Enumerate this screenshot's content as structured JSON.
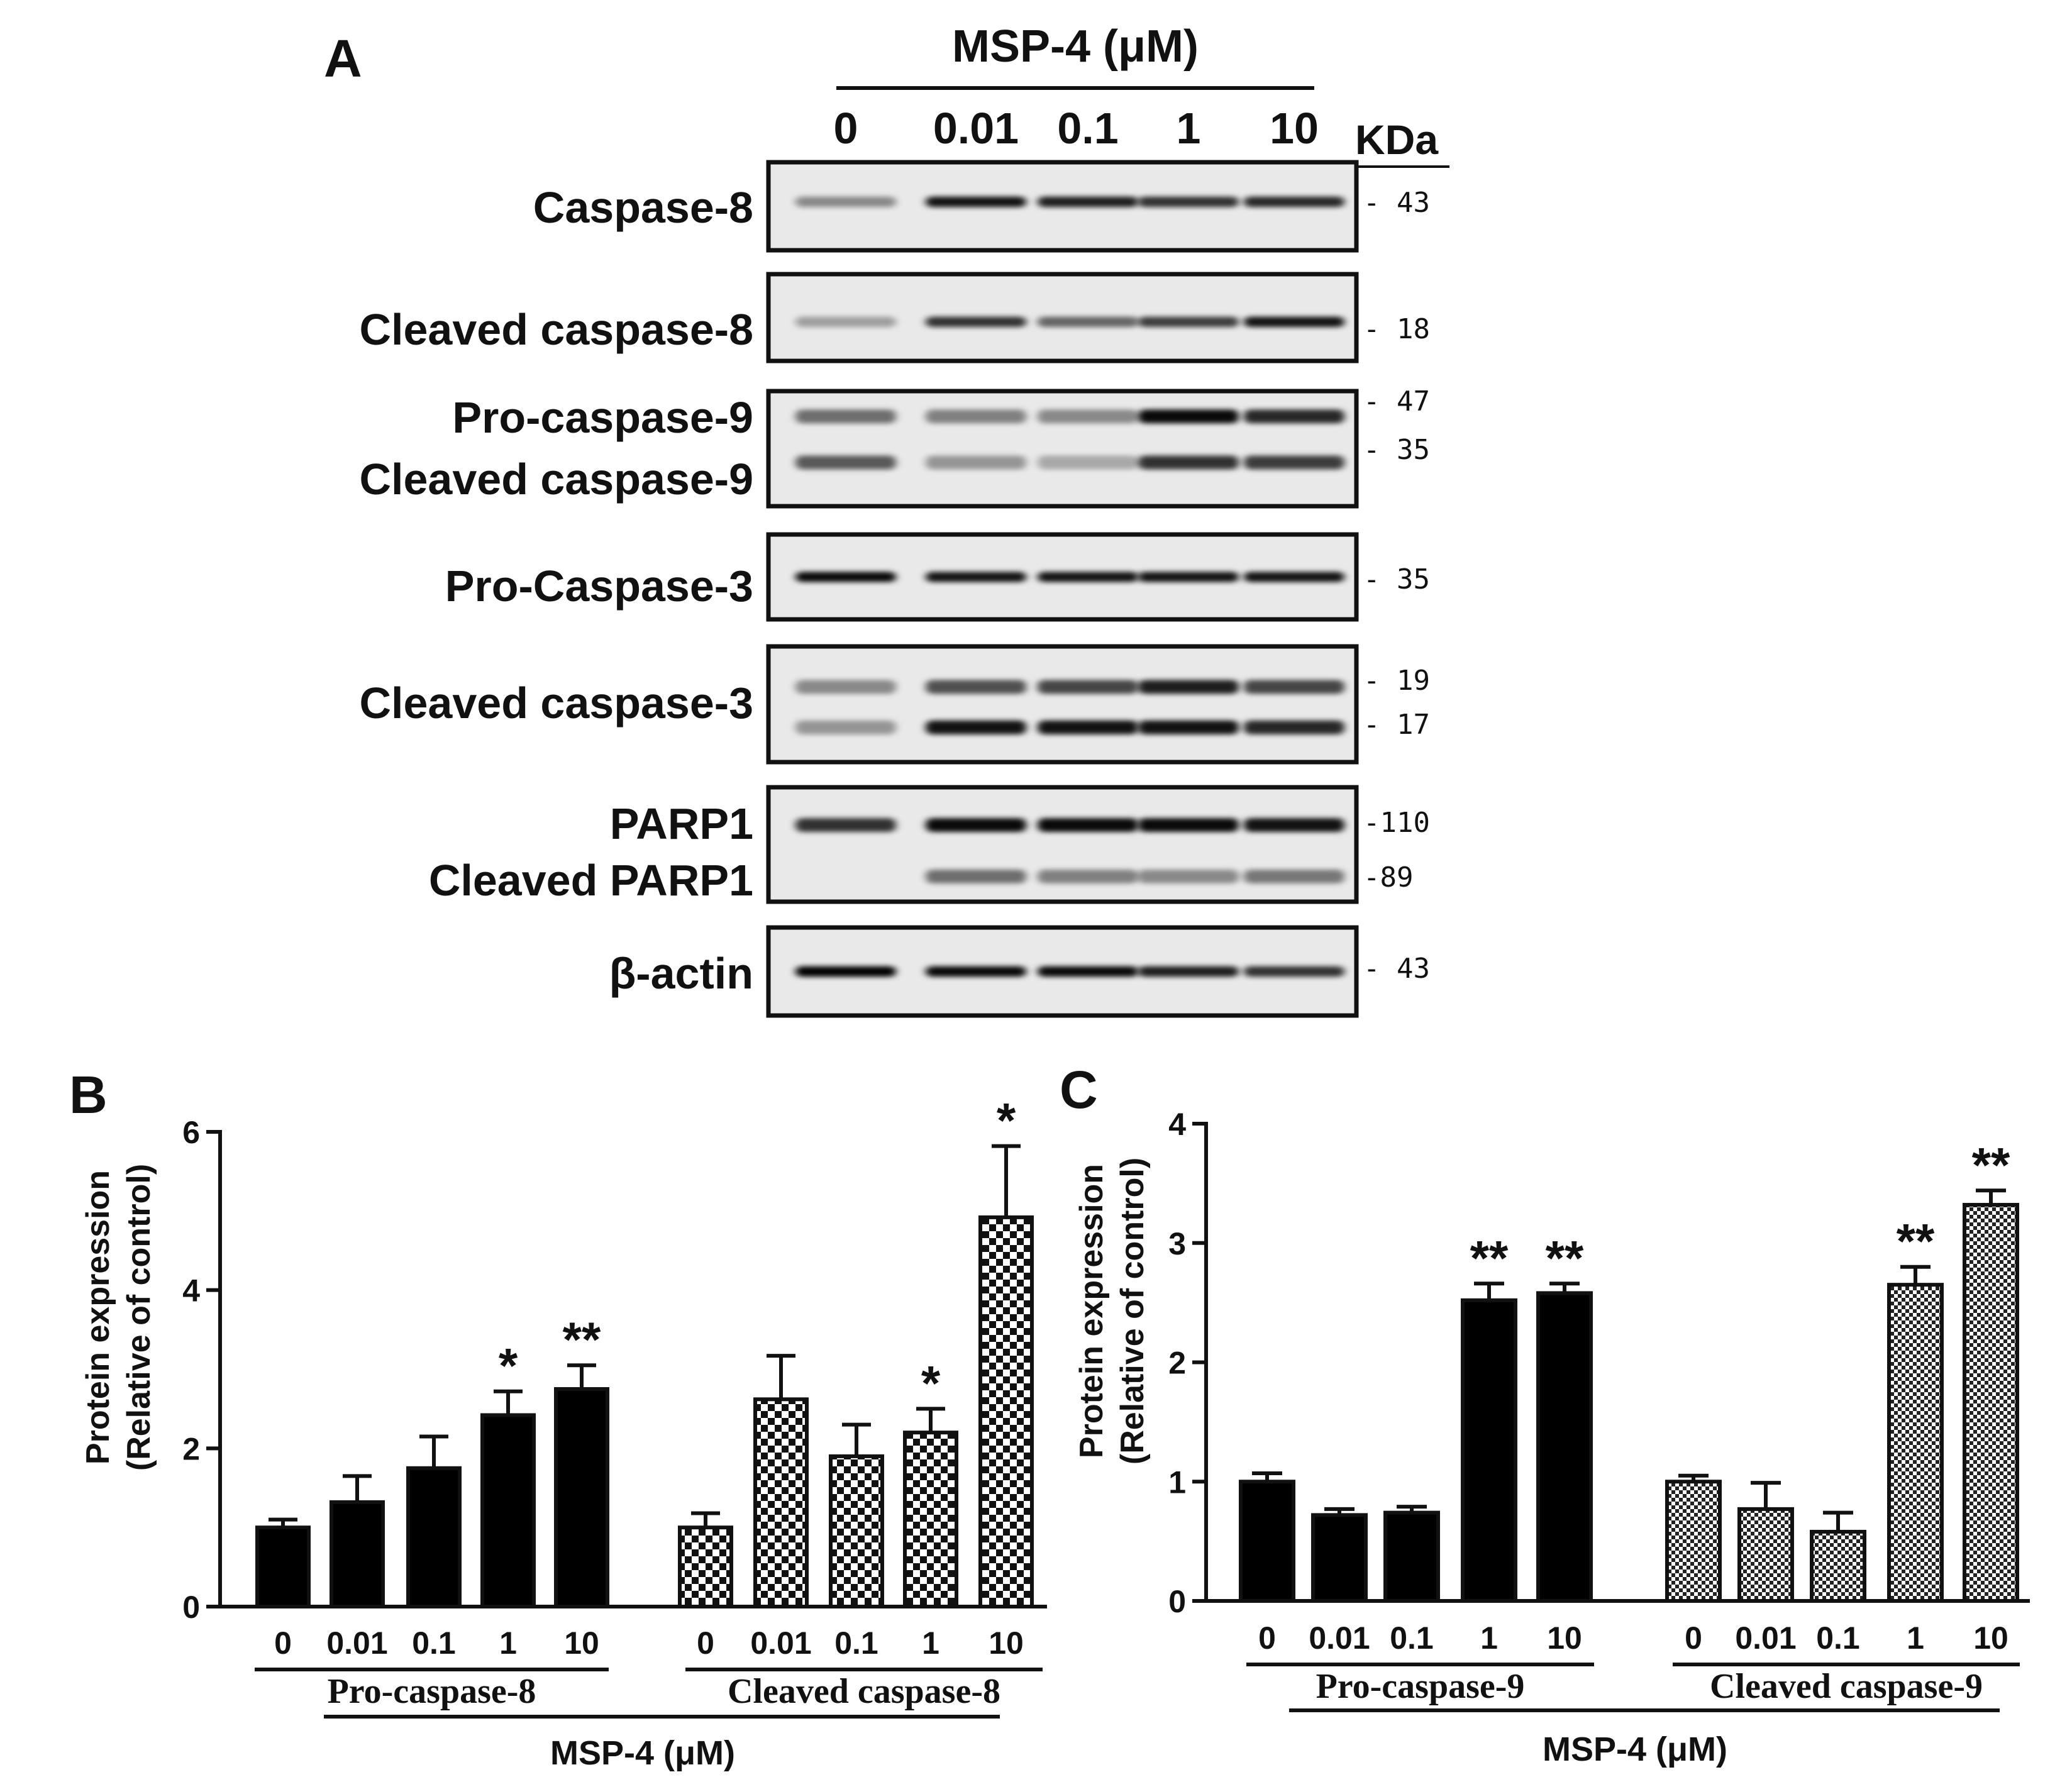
{
  "panel_a": {
    "label": "A",
    "treatment": "MSP-4 (μM)",
    "lanes": [
      "0",
      "0.01",
      "0.1",
      "1",
      "10"
    ],
    "kda_header": "KDa",
    "blots": [
      {
        "labels": [
          "Caspase-8"
        ],
        "markers": [
          "- 43"
        ],
        "bands": [
          {
            "pos": 0.45,
            "intensity": [
              0.3,
              0.9,
              0.85,
              0.75,
              0.8
            ]
          }
        ]
      },
      {
        "labels": [
          "Cleaved caspase-8"
        ],
        "markers": [
          "- 18"
        ],
        "bands": [
          {
            "pos": 0.55,
            "intensity": [
              0.2,
              0.75,
              0.5,
              0.7,
              0.9
            ]
          }
        ]
      },
      {
        "labels": [
          "Pro-caspase-9",
          "Cleaved caspase-9"
        ],
        "markers": [
          "- 47",
          "- 35"
        ],
        "bands": [
          {
            "pos": 0.22,
            "intensity": [
              0.45,
              0.35,
              0.3,
              0.95,
              0.8
            ]
          },
          {
            "pos": 0.62,
            "intensity": [
              0.55,
              0.25,
              0.15,
              0.75,
              0.7
            ]
          }
        ]
      },
      {
        "labels": [
          "Pro-Caspase-3"
        ],
        "markers": [
          "- 35"
        ],
        "bands": [
          {
            "pos": 0.5,
            "intensity": [
              0.95,
              0.9,
              0.9,
              0.9,
              0.9
            ]
          }
        ]
      },
      {
        "labels": [
          "Cleaved caspase-3"
        ],
        "markers": [
          "- 19",
          "- 17"
        ],
        "bands": [
          {
            "pos": 0.35,
            "intensity": [
              0.3,
              0.6,
              0.65,
              0.85,
              0.65
            ]
          },
          {
            "pos": 0.7,
            "intensity": [
              0.25,
              0.9,
              0.9,
              0.9,
              0.8
            ]
          }
        ]
      },
      {
        "labels": [
          "PARP1",
          "Cleaved PARP1"
        ],
        "markers": [
          "-110",
          "-89"
        ],
        "bands": [
          {
            "pos": 0.33,
            "intensity": [
              0.75,
              0.95,
              0.95,
              0.95,
              0.9
            ]
          },
          {
            "pos": 0.78,
            "intensity": [
              0.0,
              0.45,
              0.35,
              0.3,
              0.4
            ]
          }
        ]
      },
      {
        "labels": [
          "β-actin"
        ],
        "markers": [
          "- 43"
        ],
        "bands": [
          {
            "pos": 0.5,
            "intensity": [
              1.0,
              0.95,
              0.95,
              0.85,
              0.75
            ]
          }
        ]
      }
    ]
  },
  "chart_data": [
    {
      "panel": "B",
      "type": "bar",
      "ylabel_lines": [
        "Protein expression",
        "(Relative of control)"
      ],
      "ylim": [
        0,
        6
      ],
      "yticks": [
        0,
        2,
        4,
        6
      ],
      "categories": [
        "0",
        "0.01",
        "0.1",
        "1",
        "10"
      ],
      "series": [
        {
          "name": "Pro-caspase-8",
          "fill": "solid",
          "values": [
            1.0,
            1.32,
            1.75,
            2.42,
            2.75
          ],
          "errors": [
            0.1,
            0.33,
            0.4,
            0.3,
            0.3
          ],
          "significance": [
            "",
            "",
            "",
            "*",
            "**"
          ]
        },
        {
          "name": "Cleaved caspase-8",
          "fill": "checker",
          "values": [
            1.0,
            2.62,
            1.9,
            2.2,
            4.92
          ],
          "errors": [
            0.18,
            0.55,
            0.4,
            0.3,
            0.9
          ],
          "significance": [
            "",
            "",
            "",
            "*",
            "*"
          ]
        }
      ],
      "xlabel": "MSP-4 (μM)"
    },
    {
      "panel": "C",
      "type": "bar",
      "ylabel_lines": [
        "Protein expression",
        "(Relative of control)"
      ],
      "ylim": [
        0,
        4
      ],
      "yticks": [
        0,
        1,
        2,
        3,
        4
      ],
      "categories": [
        "0",
        "0.01",
        "0.1",
        "1",
        "10"
      ],
      "series": [
        {
          "name": "Pro-caspase-9",
          "fill": "solid",
          "values": [
            1.0,
            0.72,
            0.74,
            2.52,
            2.58
          ],
          "errors": [
            0.07,
            0.05,
            0.05,
            0.14,
            0.08
          ],
          "significance": [
            "",
            "",
            "",
            "**",
            "**"
          ]
        },
        {
          "name": "Cleaved caspase-9",
          "fill": "fine-checker",
          "values": [
            1.0,
            0.77,
            0.58,
            2.65,
            3.32
          ],
          "errors": [
            0.05,
            0.22,
            0.16,
            0.15,
            0.12
          ],
          "significance": [
            "",
            "",
            "",
            "**",
            "**"
          ]
        }
      ],
      "xlabel": "MSP-4 (μM)"
    }
  ]
}
